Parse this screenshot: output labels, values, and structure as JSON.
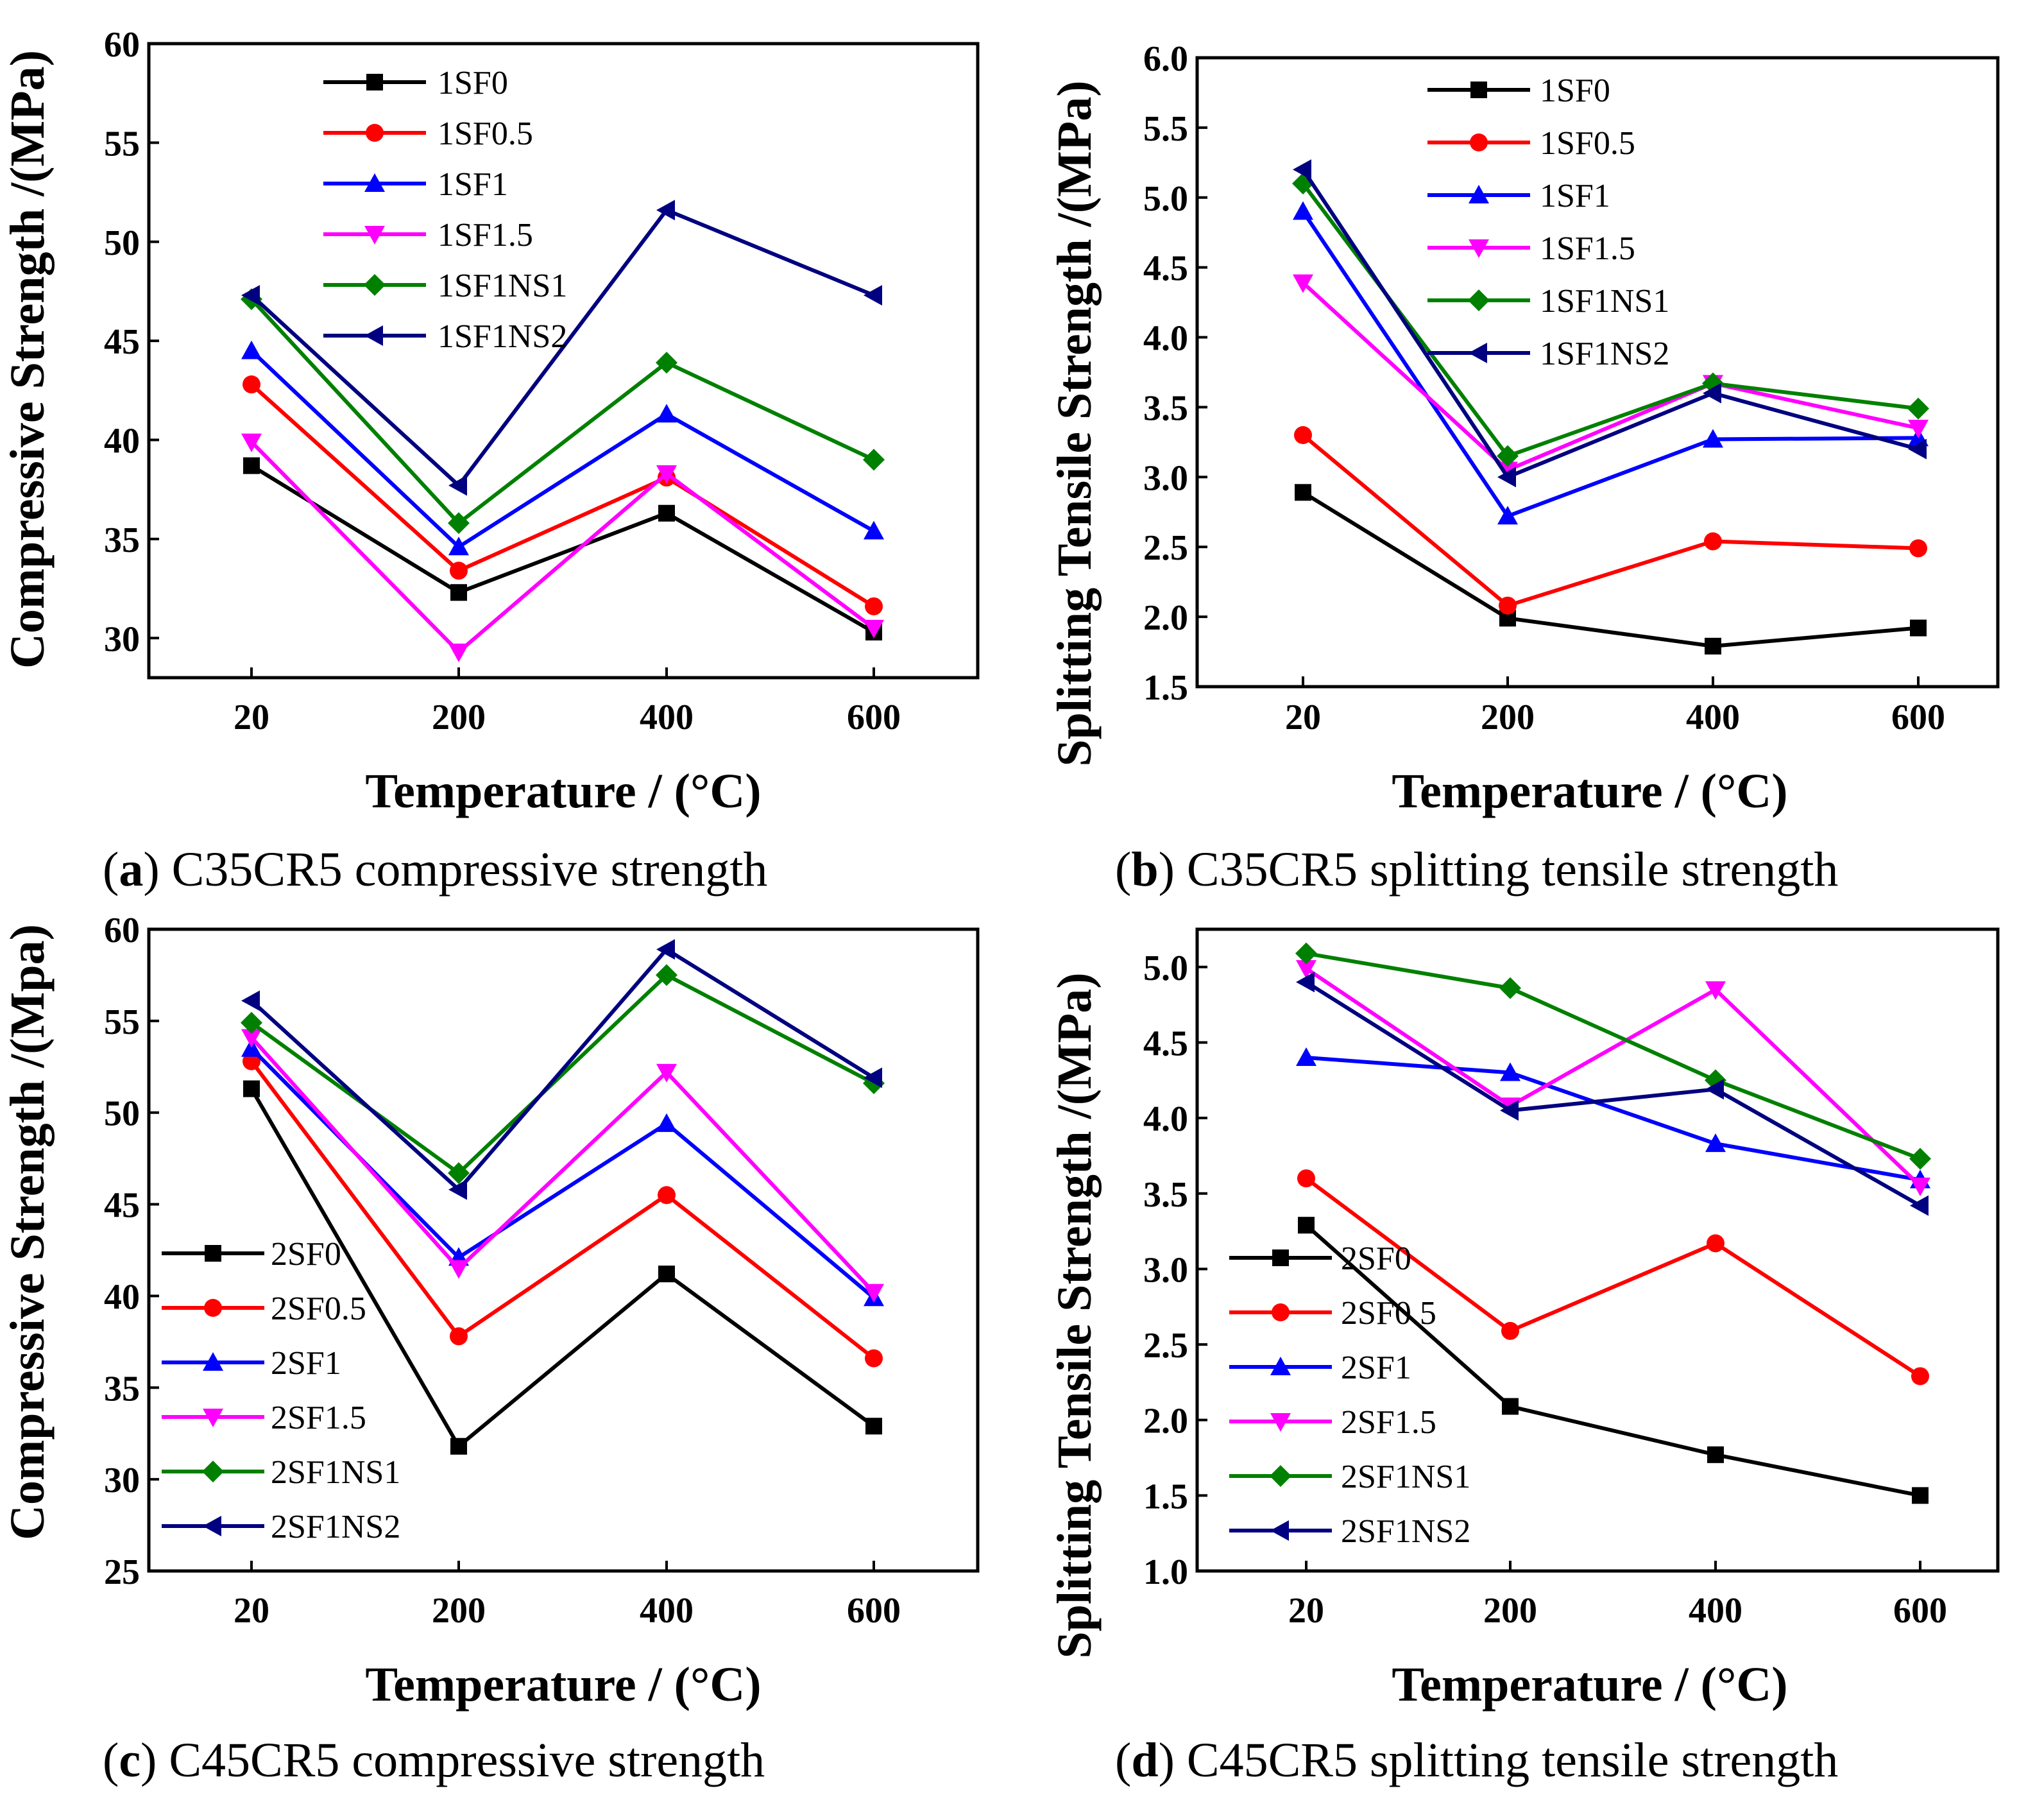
{
  "chart_data": [
    {
      "type": "line",
      "panel_letter": "a",
      "caption": "C35CR5 compressive strength",
      "xlabel": "Temperature  / (°C)",
      "ylabel": "Compressive  Strength  /(MPa)",
      "categories": [
        "20",
        "200",
        "400",
        "600"
      ],
      "ylim": [
        28,
        60
      ],
      "yticks": [
        30,
        35,
        40,
        45,
        50,
        55,
        60
      ],
      "ytick_labels": [
        "30",
        "35",
        "40",
        "45",
        "50",
        "55",
        "60"
      ],
      "legend_position": "top-center",
      "series": [
        {
          "name": "1SF0",
          "values": [
            38.7,
            32.3,
            36.3,
            30.3
          ],
          "color": "#000000",
          "marker": "square"
        },
        {
          "name": "1SF0.5",
          "values": [
            42.8,
            33.4,
            38.1,
            31.6
          ],
          "color": "#ff0000",
          "marker": "circle"
        },
        {
          "name": "1SF1",
          "values": [
            44.5,
            34.6,
            41.3,
            35.4
          ],
          "color": "#0000ff",
          "marker": "triangle-up"
        },
        {
          "name": "1SF1.5",
          "values": [
            39.9,
            29.3,
            38.3,
            30.5
          ],
          "color": "#ff00ff",
          "marker": "triangle-down"
        },
        {
          "name": "1SF1NS1",
          "values": [
            47.1,
            35.8,
            43.9,
            39.0
          ],
          "color": "#008000",
          "marker": "diamond"
        },
        {
          "name": "1SF1NS2",
          "values": [
            47.3,
            37.7,
            51.6,
            47.3
          ],
          "color": "#000080",
          "marker": "triangle-left"
        }
      ]
    },
    {
      "type": "line",
      "panel_letter": "b",
      "caption": "C35CR5 splitting tensile strength",
      "xlabel": "Temperature  / (°C)",
      "ylabel": "Splitting Tensile Strength  /(MPa)",
      "categories": [
        "20",
        "200",
        "400",
        "600"
      ],
      "ylim": [
        1.5,
        6.0
      ],
      "yticks": [
        1.5,
        2.0,
        2.5,
        3.0,
        3.5,
        4.0,
        4.5,
        5.0,
        5.5,
        6.0
      ],
      "ytick_labels": [
        "1.5",
        "2.0",
        "2.5",
        "3.0",
        "3.5",
        "4.0",
        "4.5",
        "5.0",
        "5.5",
        "6.0"
      ],
      "legend_position": "top-center",
      "series": [
        {
          "name": "1SF0",
          "values": [
            2.89,
            1.99,
            1.79,
            1.92
          ],
          "color": "#000000",
          "marker": "square"
        },
        {
          "name": "1SF0.5",
          "values": [
            3.3,
            2.08,
            2.54,
            2.49
          ],
          "color": "#ff0000",
          "marker": "circle"
        },
        {
          "name": "1SF1",
          "values": [
            4.9,
            2.72,
            3.27,
            3.28
          ],
          "color": "#0000ff",
          "marker": "triangle-up"
        },
        {
          "name": "1SF1.5",
          "values": [
            4.39,
            3.05,
            3.67,
            3.35
          ],
          "color": "#ff00ff",
          "marker": "triangle-down"
        },
        {
          "name": "1SF1NS1",
          "values": [
            5.1,
            3.15,
            3.67,
            3.49
          ],
          "color": "#008000",
          "marker": "diamond"
        },
        {
          "name": "1SF1NS2",
          "values": [
            5.2,
            3.0,
            3.6,
            3.2
          ],
          "color": "#000080",
          "marker": "triangle-left"
        }
      ]
    },
    {
      "type": "line",
      "panel_letter": "c",
      "caption": "C45CR5 compressive strength",
      "xlabel": "Temperature  / (°C)",
      "ylabel": "Compressive  Strength  /(Mpa)",
      "categories": [
        "20",
        "200",
        "400",
        "600"
      ],
      "ylim": [
        25,
        60
      ],
      "yticks": [
        25,
        30,
        35,
        40,
        45,
        50,
        55,
        60
      ],
      "ytick_labels": [
        "25",
        "30",
        "35",
        "40",
        "45",
        "50",
        "55",
        "60"
      ],
      "legend_position": "bottom-left",
      "series": [
        {
          "name": "2SF0",
          "values": [
            51.3,
            31.8,
            41.2,
            32.9
          ],
          "color": "#000000",
          "marker": "square"
        },
        {
          "name": "2SF0.5",
          "values": [
            52.8,
            37.8,
            45.5,
            36.6
          ],
          "color": "#ff0000",
          "marker": "circle"
        },
        {
          "name": "2SF1",
          "values": [
            53.5,
            42.1,
            49.4,
            39.9
          ],
          "color": "#0000ff",
          "marker": "triangle-up"
        },
        {
          "name": "2SF1.5",
          "values": [
            54.1,
            41.5,
            52.2,
            40.2
          ],
          "color": "#ff00ff",
          "marker": "triangle-down"
        },
        {
          "name": "2SF1NS1",
          "values": [
            54.9,
            46.7,
            57.5,
            51.6
          ],
          "color": "#008000",
          "marker": "diamond"
        },
        {
          "name": "2SF1NS2",
          "values": [
            56.1,
            45.8,
            58.9,
            51.9
          ],
          "color": "#000080",
          "marker": "triangle-left"
        }
      ]
    },
    {
      "type": "line",
      "panel_letter": "d",
      "caption": "C45CR5 splitting tensile strength",
      "xlabel": "Temperature  / (°C)",
      "ylabel": "Splitting Tensile Strength  /(MPa)",
      "categories": [
        "20",
        "200",
        "400",
        "600"
      ],
      "ylim": [
        1.0,
        5.25
      ],
      "yticks": [
        1.0,
        1.5,
        2.0,
        2.5,
        3.0,
        3.5,
        4.0,
        4.5,
        5.0
      ],
      "ytick_labels": [
        "1.0",
        "1.5",
        "2.0",
        "2.5",
        "3.0",
        "3.5",
        "4.0",
        "4.5",
        "5.0"
      ],
      "legend_position": "bottom-left",
      "series": [
        {
          "name": "2SF0",
          "values": [
            3.29,
            2.09,
            1.77,
            1.5
          ],
          "color": "#000000",
          "marker": "square"
        },
        {
          "name": "2SF0.5",
          "values": [
            3.6,
            2.59,
            3.17,
            2.29
          ],
          "color": "#ff0000",
          "marker": "circle"
        },
        {
          "name": "2SF1",
          "values": [
            4.4,
            4.3,
            3.83,
            3.59
          ],
          "color": "#0000ff",
          "marker": "triangle-up"
        },
        {
          "name": "2SF1.5",
          "values": [
            4.99,
            4.08,
            4.85,
            3.55
          ],
          "color": "#ff00ff",
          "marker": "triangle-down"
        },
        {
          "name": "2SF1NS1",
          "values": [
            5.09,
            4.86,
            4.25,
            3.73
          ],
          "color": "#008000",
          "marker": "diamond"
        },
        {
          "name": "2SF1NS2",
          "values": [
            4.9,
            4.05,
            4.19,
            3.42
          ],
          "color": "#000080",
          "marker": "triangle-left"
        }
      ]
    }
  ]
}
